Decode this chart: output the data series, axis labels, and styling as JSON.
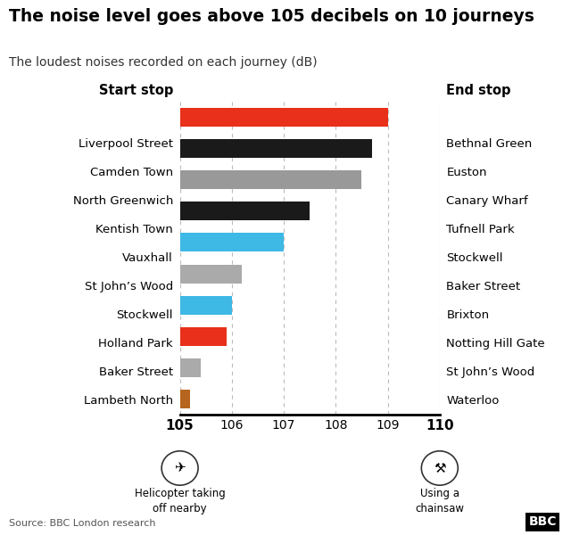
{
  "title": "The noise level goes above 105 decibels on 10 journeys",
  "subtitle": "The loudest noises recorded on each journey (dB)",
  "start_stops": [
    "Liverpool Street",
    "Camden Town",
    "North Greenwich",
    "Kentish Town",
    "Vauxhall",
    "St John’s Wood",
    "Stockwell",
    "Holland Park",
    "Baker Street",
    "Lambeth North"
  ],
  "end_stops": [
    "Bethnal Green",
    "Euston",
    "Canary Wharf",
    "Tufnell Park",
    "Stockwell",
    "Baker Street",
    "Brixton",
    "Notting Hill Gate",
    "St John’s Wood",
    "Waterloo"
  ],
  "values": [
    109.0,
    108.7,
    108.5,
    107.5,
    107.0,
    106.2,
    106.0,
    105.9,
    105.4,
    105.2
  ],
  "colors": [
    "#e8301a",
    "#1a1a1a",
    "#999999",
    "#1a1a1a",
    "#3eb8e5",
    "#aaaaaa",
    "#3eb8e5",
    "#e8301a",
    "#aaaaaa",
    "#b5651d"
  ],
  "xlim_min": 105,
  "xlim_max": 110,
  "xticks": [
    105,
    106,
    107,
    108,
    109,
    110
  ],
  "bar_height": 0.6,
  "start_label": "Start stop",
  "end_label": "End stop",
  "source": "Source: BBC London research",
  "background_color": "#ffffff",
  "title_fontsize": 13.5,
  "subtitle_fontsize": 10,
  "tick_fontsize": 10,
  "annotation_105": "Helicopter taking\noff nearby",
  "annotation_110": "Using a\nchainsaw"
}
